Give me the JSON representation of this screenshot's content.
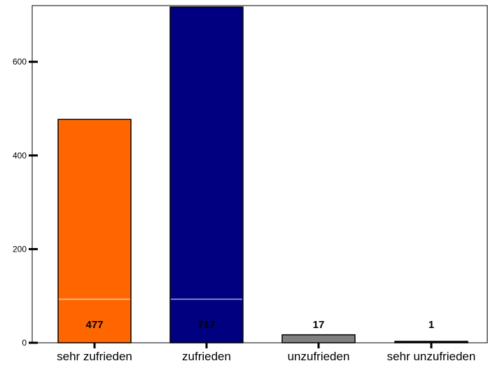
{
  "chart_data": {
    "type": "bar",
    "categories": [
      "sehr zufrieden",
      "zufrieden",
      "unzufrieden",
      "sehr unzufrieden"
    ],
    "values": [
      477,
      717,
      17,
      1
    ],
    "data_labels": [
      "477",
      "717",
      "17",
      "1"
    ],
    "colors": [
      "#ff6600",
      "#000080",
      "#808080",
      "#000000"
    ],
    "title": "",
    "xlabel": "",
    "ylabel": "",
    "ylim": [
      0,
      720
    ],
    "yticks": [
      0,
      200,
      400,
      600
    ],
    "reference_line_value": 93,
    "grid": false,
    "legend": "none"
  }
}
